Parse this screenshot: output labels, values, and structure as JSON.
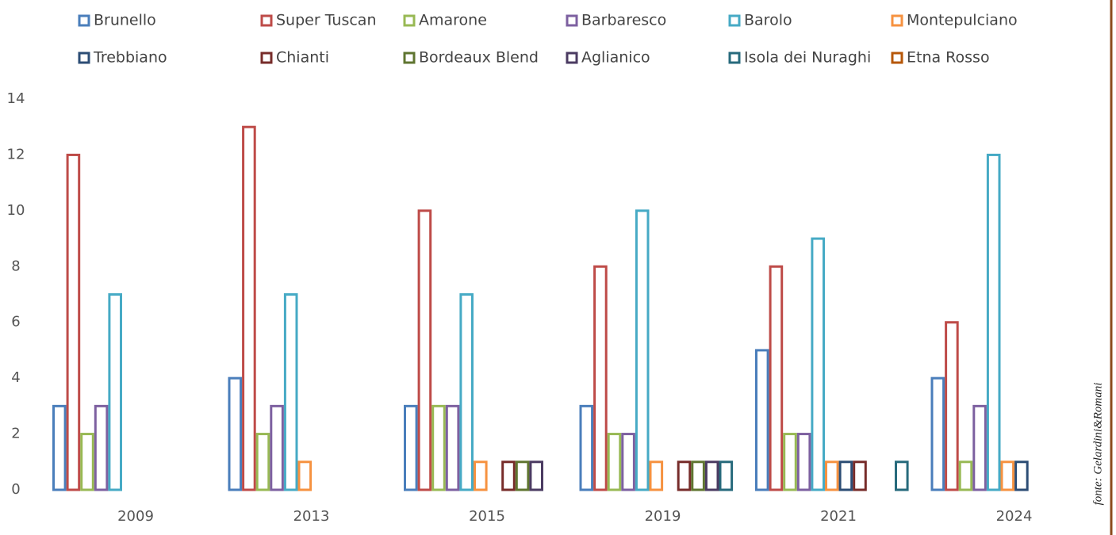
{
  "chart_data": {
    "type": "bar",
    "categories": [
      "2009",
      "2013",
      "2015",
      "2019",
      "2021",
      "2024"
    ],
    "series": [
      {
        "name": "Brunello",
        "color": "#4a7ebb",
        "values": [
          3,
          4,
          3,
          3,
          5,
          4
        ]
      },
      {
        "name": "Super Tuscan",
        "color": "#be4b48",
        "values": [
          12,
          13,
          10,
          8,
          8,
          6
        ]
      },
      {
        "name": "Amarone",
        "color": "#98b954",
        "values": [
          2,
          2,
          3,
          2,
          2,
          1
        ]
      },
      {
        "name": "Barbaresco",
        "color": "#7d60a0",
        "values": [
          3,
          3,
          3,
          2,
          2,
          3
        ]
      },
      {
        "name": "Barolo",
        "color": "#46aac5",
        "values": [
          7,
          7,
          7,
          10,
          9,
          12
        ]
      },
      {
        "name": "Montepulciano",
        "color": "#f69240",
        "values": [
          0,
          1,
          1,
          1,
          1,
          1
        ]
      },
      {
        "name": "Trebbiano",
        "color": "#2c4d75",
        "values": [
          0,
          0,
          0,
          0,
          1,
          1
        ]
      },
      {
        "name": "Chianti",
        "color": "#772c2a",
        "values": [
          0,
          0,
          1,
          1,
          1,
          0
        ]
      },
      {
        "name": "Bordeaux Blend",
        "color": "#5f7530",
        "values": [
          0,
          0,
          1,
          1,
          0,
          0
        ]
      },
      {
        "name": "Aglianico",
        "color": "#4b3b62",
        "values": [
          0,
          0,
          1,
          1,
          0,
          0
        ]
      },
      {
        "name": "Isola dei Nuraghi",
        "color": "#276a7c",
        "values": [
          0,
          0,
          0,
          1,
          1,
          0
        ]
      },
      {
        "name": "Etna Rosso",
        "color": "#b65708",
        "values": [
          0,
          0,
          0,
          0,
          0,
          0
        ]
      }
    ],
    "ylim": [
      0,
      14
    ],
    "yticks": [
      0,
      2,
      4,
      6,
      8,
      10,
      12,
      14
    ],
    "grid": false,
    "source": "fonte: Gelardini&Romani"
  }
}
